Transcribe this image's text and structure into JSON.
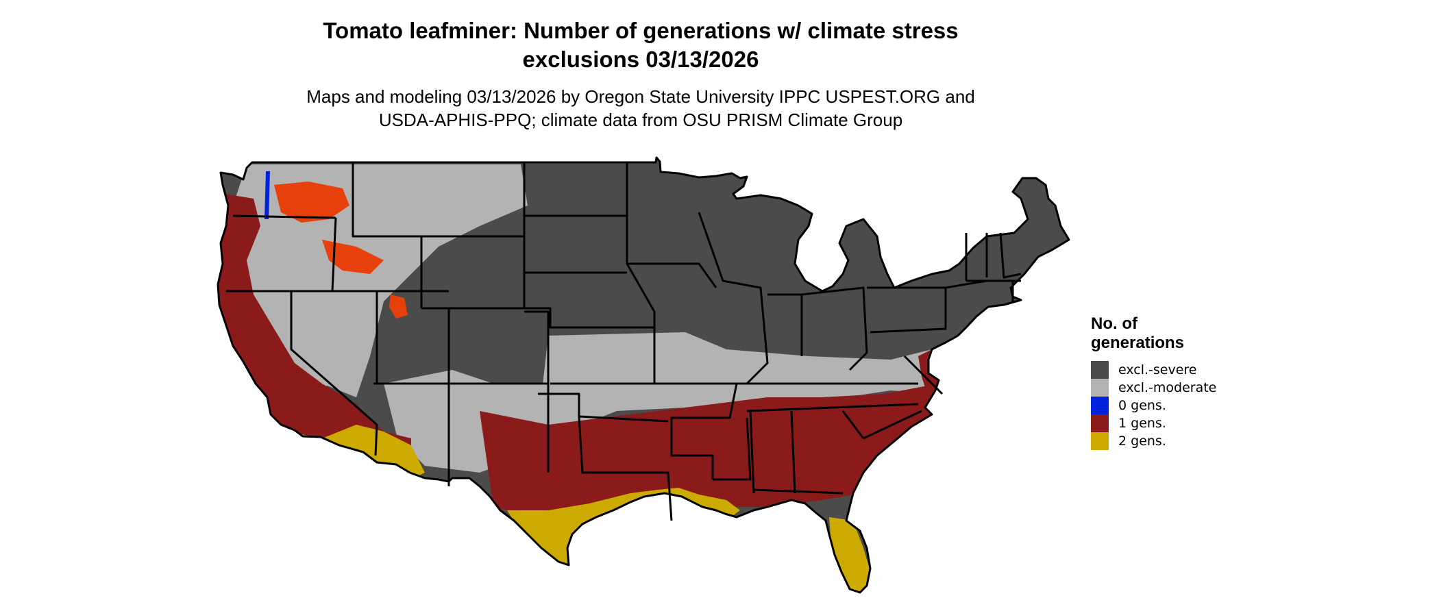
{
  "title": {
    "line1": "Tomato leafminer: Number of generations w/ climate stress",
    "line2": "exclusions 03/13/2026"
  },
  "subtitle": {
    "line1": "Maps and modeling 03/13/2026 by Oregon State University IPPC USPEST.ORG and",
    "line2": "USDA-APHIS-PPQ; climate data from OSU PRISM Climate Group"
  },
  "legend": {
    "title_line1": "No. of",
    "title_line2": "generations",
    "items": [
      {
        "label": "excl.-severe",
        "color": "#4b4b4b"
      },
      {
        "label": "excl.-moderate",
        "color": "#b3b3b3"
      },
      {
        "label": "0 gens.",
        "color": "#0022dd"
      },
      {
        "label": "1 gens.",
        "color": "#8b1a1a"
      },
      {
        "label": "2 gens.",
        "color": "#ccaa00"
      }
    ]
  },
  "map": {
    "region": "Conterminous United States",
    "accent_color": "#e8400a",
    "border_color": "#000000"
  }
}
